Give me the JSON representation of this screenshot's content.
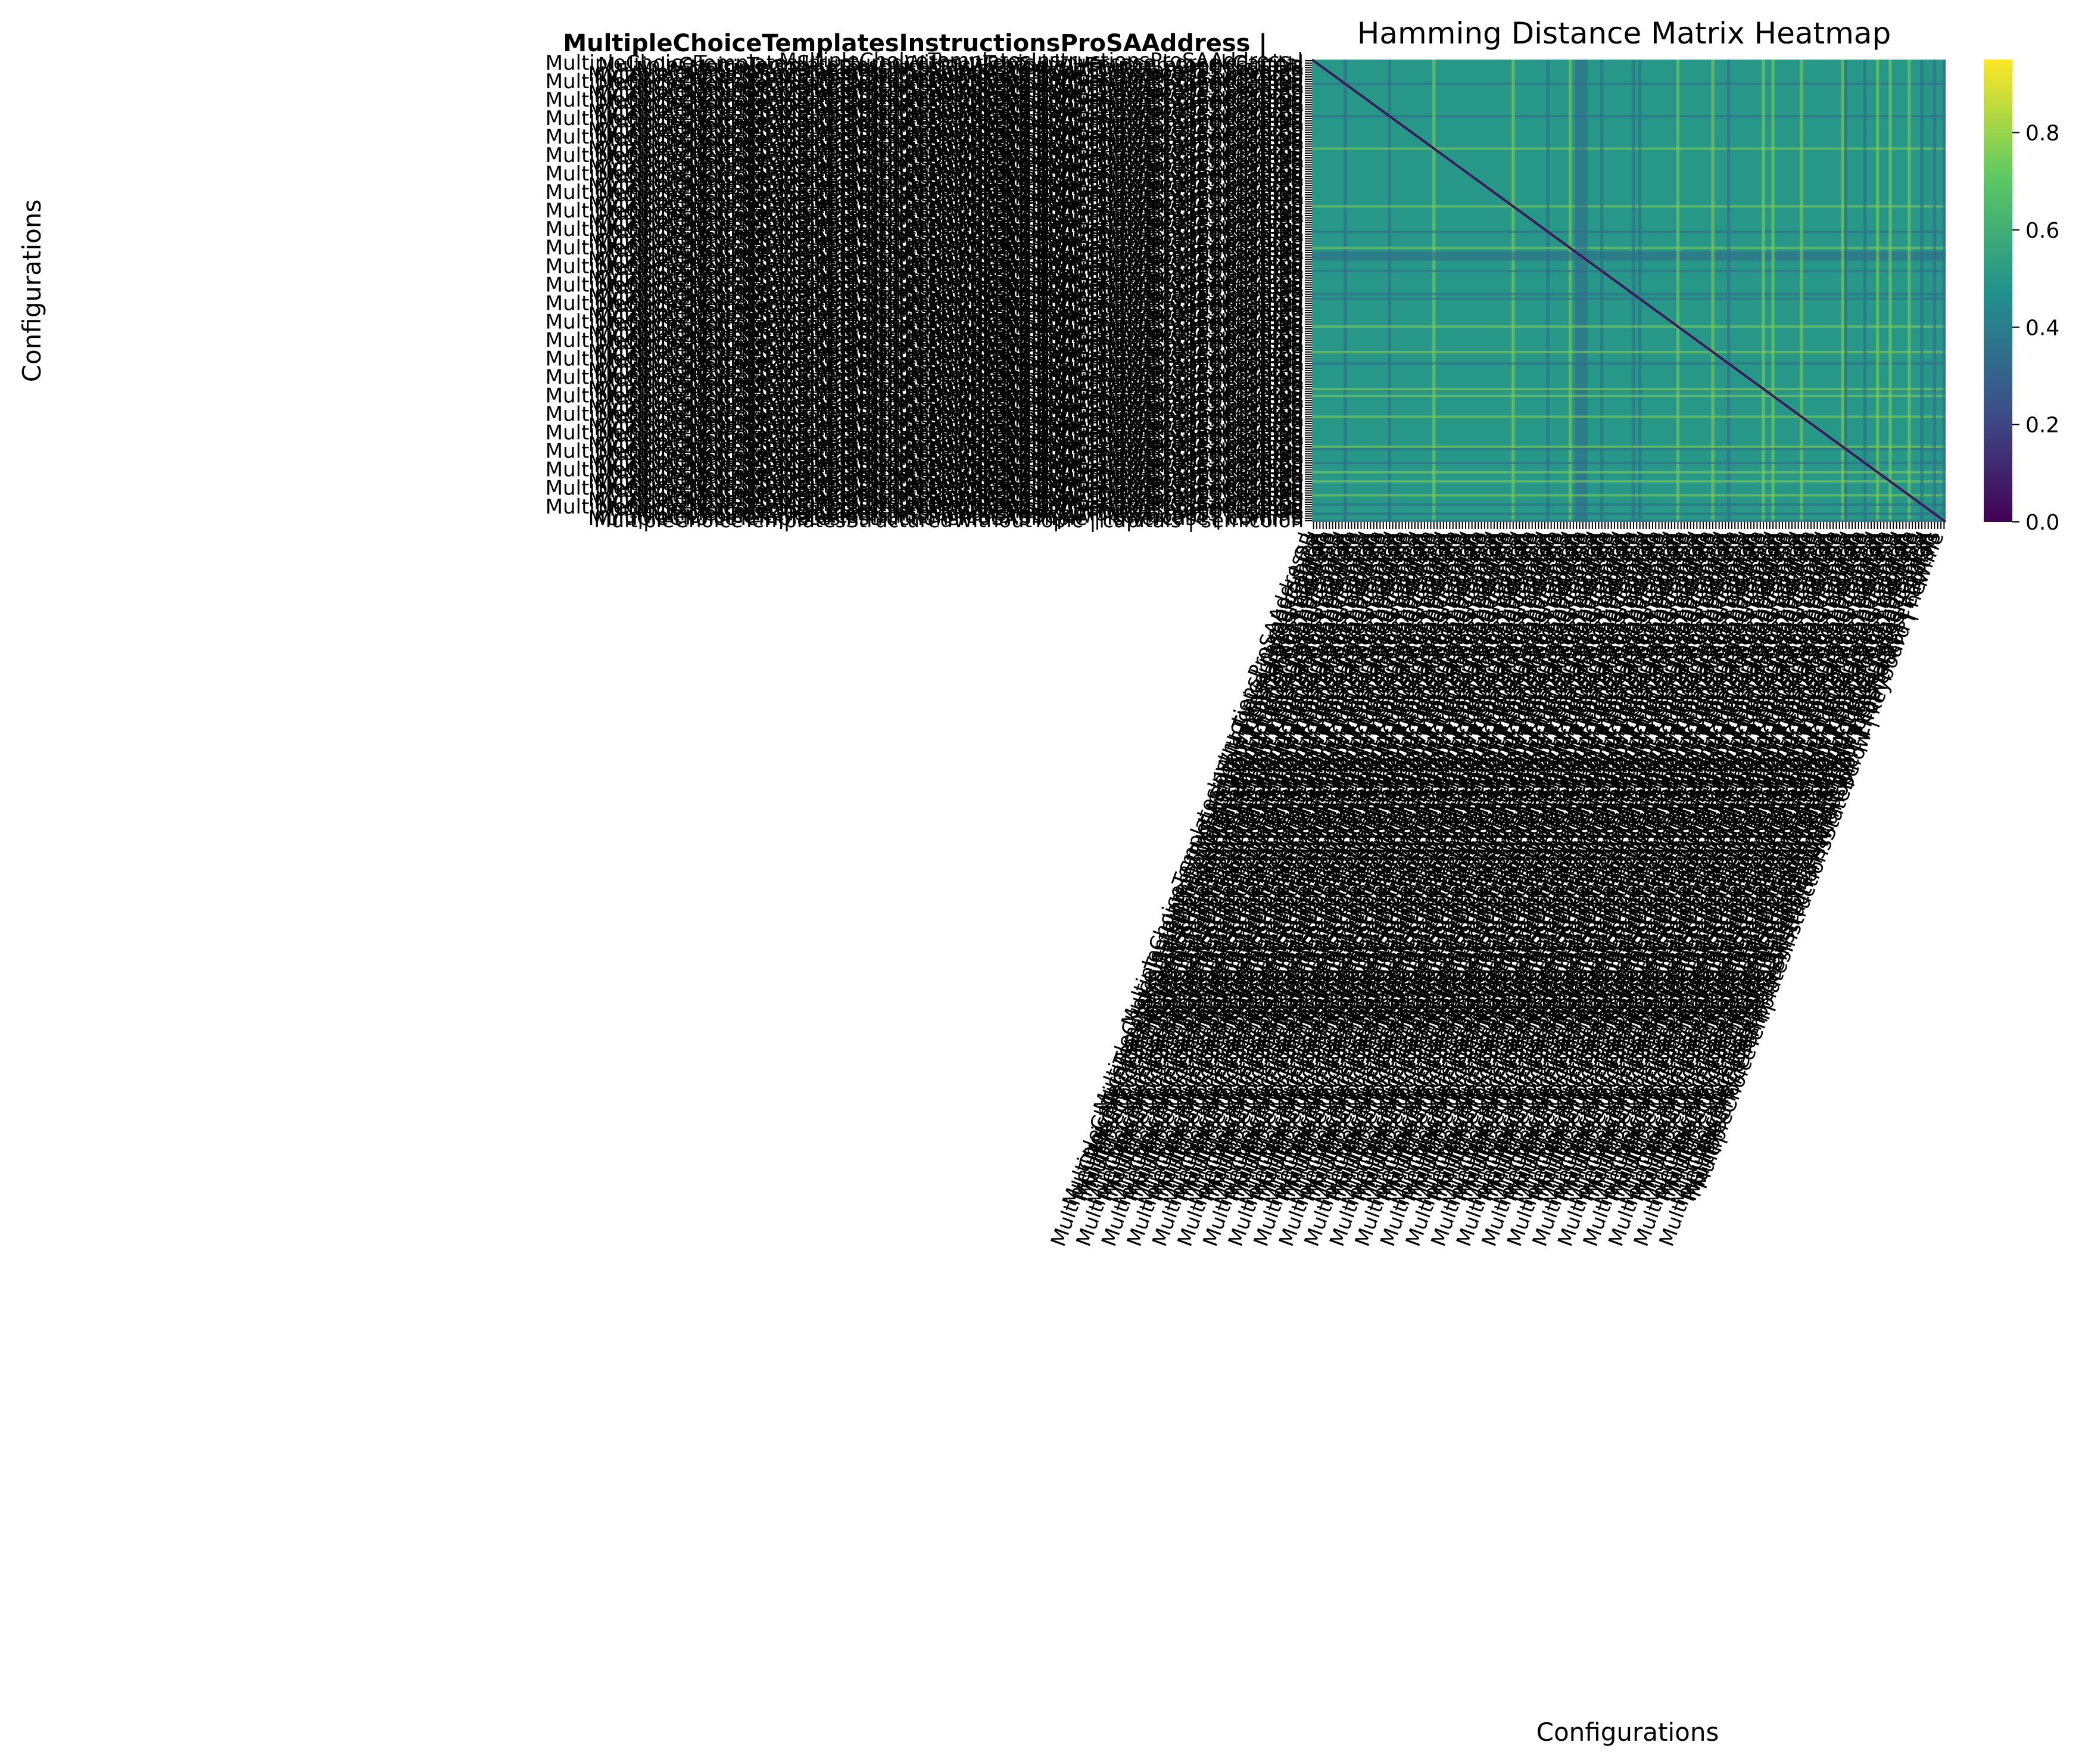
{
  "chart_data": {
    "type": "heatmap",
    "title": "Hamming Distance Matrix Heatmap",
    "xlabel": "Configurations",
    "ylabel": "Configurations",
    "label_readable_example": "MultipleChoiceTemplatesInstructionsProSAAddress |",
    "label_prefix": "MultipleChoiceTemplates",
    "label_fragments": [
      "MultipleChoiceTemplatesInstructionsProSAAddress |",
      "MultipleChoiceTemplatesStructuredWithoutTopic | lowercase | greekCapital",
      "MultipleChoiceTemplatesInstructionsWithTopic | Enumerator | capitals",
      "MultipleChoiceTemplatesStructuredWithTopic | numbers | OR",
      "MultipleChoiceTemplatesInstructionsWithoutTopicHarness | roman",
      "MultipleChoiceTemplatesInstructionsStateBelow | keyboard | newline",
      "MultipleChoiceTemplatesInstructionsProSASimple | lowercase | comma",
      "MultipleChoiceTemplatesStructuredWithoutTopic | capitals | semicolon"
    ],
    "matrix_size": 200,
    "value_range": [
      0.0,
      0.95
    ],
    "diagonal_value": 0.0,
    "typical_off_diagonal": 0.5,
    "colormap": "viridis",
    "colorbar": {
      "ticks": [
        "0.0",
        "0.2",
        "0.4",
        "0.6",
        "0.8"
      ],
      "min": 0.0,
      "max": 0.95
    },
    "grid": false,
    "legend": "none"
  }
}
